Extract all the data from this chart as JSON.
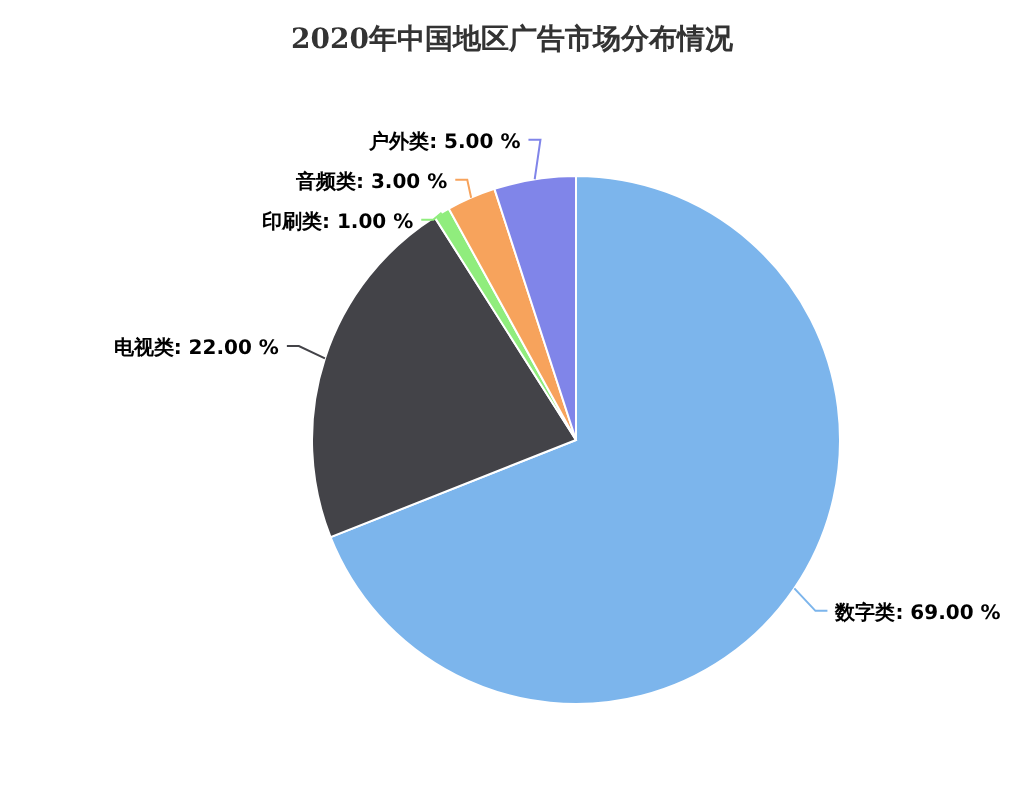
{
  "chart_data": {
    "type": "pie",
    "title": "2020年中国地区广告市场分布情况",
    "categories": [
      "数字类",
      "电视类",
      "印刷类",
      "音频类",
      "户外类"
    ],
    "values": [
      69,
      22,
      1,
      3,
      5
    ],
    "value_labels": [
      "69.00 %",
      "22.00 %",
      "1.00 %",
      "3.00 %",
      "5.00 %"
    ],
    "colors": [
      "#7cb5ec",
      "#434348",
      "#90ed7d",
      "#f7a35c",
      "#8085e9"
    ]
  }
}
